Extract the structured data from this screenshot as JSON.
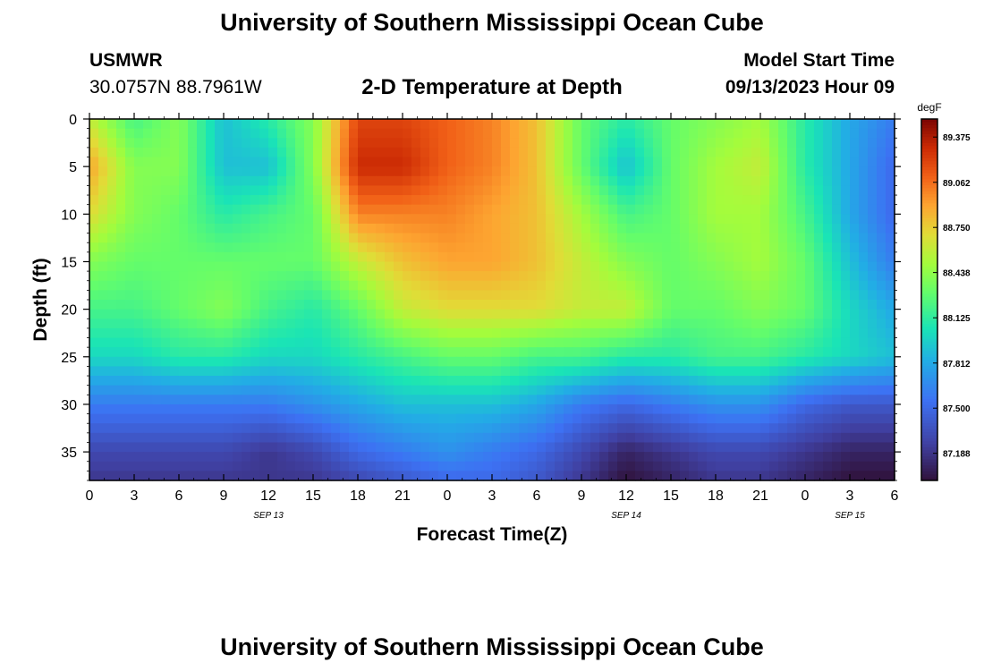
{
  "header": {
    "title": "University of Southern Mississippi Ocean Cube",
    "station_name": "USMWR",
    "coords": "30.0757N  88.7961W",
    "plot_title": "2-D Temperature at Depth",
    "start_label": "Model Start Time",
    "start_value": "09/13/2023 Hour 09"
  },
  "footer": {
    "title": "University of Southern Mississippi Ocean Cube"
  },
  "chart_data": {
    "type": "heatmap",
    "title": "2-D Temperature at Depth",
    "xlabel": "Forecast Time(Z)",
    "ylabel": "Depth (ft)",
    "x_tick_labels": [
      "0",
      "3",
      "6",
      "9",
      "12",
      "15",
      "18",
      "21",
      "0",
      "3",
      "6",
      "9",
      "12",
      "15",
      "18",
      "21",
      "0",
      "3",
      "6"
    ],
    "x_range_hours": [
      0,
      54
    ],
    "date_labels": [
      {
        "label": "SEP 13",
        "hour": 12
      },
      {
        "label": "SEP 14",
        "hour": 36
      },
      {
        "label": "SEP 15",
        "hour": 51
      }
    ],
    "y_tick_labels": [
      "0",
      "5",
      "10",
      "15",
      "20",
      "25",
      "30",
      "35"
    ],
    "ylim": [
      0,
      38
    ],
    "y_inverted": true,
    "colorbar": {
      "unit": "degF",
      "tick_labels": [
        "89.375",
        "89.062",
        "88.750",
        "88.438",
        "88.125",
        "87.812",
        "87.500",
        "87.188"
      ],
      "range": [
        87.0,
        89.5
      ]
    },
    "grid_time_hours": [
      0,
      3,
      6,
      9,
      12,
      15,
      18,
      21,
      24,
      27,
      30,
      33,
      36,
      39,
      42,
      45,
      48,
      51,
      54
    ],
    "grid_depth_ft": [
      0,
      5,
      10,
      15,
      20,
      25,
      30,
      35,
      38
    ],
    "temperature_degF": [
      [
        88.6,
        88.2,
        88.4,
        87.9,
        88.1,
        88.4,
        89.2,
        89.2,
        89.1,
        89.0,
        88.8,
        88.3,
        88.1,
        88.3,
        88.4,
        88.5,
        88.1,
        87.8,
        87.6
      ],
      [
        88.9,
        88.4,
        88.4,
        87.9,
        87.9,
        88.4,
        89.3,
        89.3,
        89.1,
        89.0,
        88.8,
        88.3,
        87.9,
        88.3,
        88.5,
        88.6,
        88.1,
        87.8,
        87.5
      ],
      [
        88.7,
        88.4,
        88.3,
        88.1,
        88.2,
        88.3,
        89.0,
        89.0,
        89.0,
        88.9,
        88.8,
        88.5,
        88.2,
        88.3,
        88.5,
        88.5,
        88.2,
        87.8,
        87.5
      ],
      [
        88.4,
        88.3,
        88.3,
        88.3,
        88.3,
        88.3,
        88.6,
        88.8,
        88.9,
        88.9,
        88.8,
        88.6,
        88.4,
        88.3,
        88.4,
        88.5,
        88.3,
        87.9,
        87.6
      ],
      [
        88.2,
        88.2,
        88.3,
        88.4,
        88.2,
        88.1,
        88.3,
        88.6,
        88.7,
        88.7,
        88.7,
        88.6,
        88.6,
        88.3,
        88.3,
        88.4,
        88.3,
        88.0,
        87.8
      ],
      [
        88.0,
        88.0,
        88.1,
        88.1,
        88.0,
        88.0,
        88.1,
        88.2,
        88.3,
        88.3,
        88.2,
        88.2,
        88.1,
        88.1,
        88.2,
        88.2,
        88.1,
        88.0,
        87.9
      ],
      [
        87.6,
        87.6,
        87.6,
        87.6,
        87.6,
        87.7,
        87.8,
        87.9,
        87.9,
        87.9,
        87.8,
        87.6,
        87.5,
        87.6,
        87.7,
        87.7,
        87.5,
        87.4,
        87.4
      ],
      [
        87.3,
        87.3,
        87.3,
        87.3,
        87.2,
        87.3,
        87.5,
        87.6,
        87.7,
        87.6,
        87.5,
        87.3,
        87.1,
        87.2,
        87.3,
        87.3,
        87.2,
        87.1,
        87.1
      ],
      [
        87.2,
        87.2,
        87.2,
        87.2,
        87.2,
        87.2,
        87.3,
        87.4,
        87.5,
        87.5,
        87.4,
        87.2,
        87.0,
        87.1,
        87.2,
        87.2,
        87.1,
        87.0,
        87.0
      ]
    ]
  }
}
